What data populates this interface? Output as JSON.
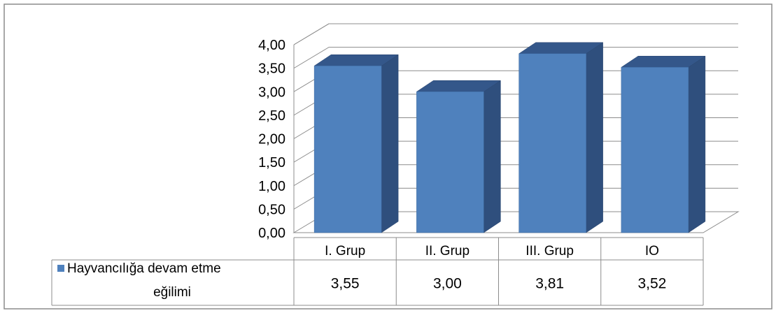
{
  "chart_data": {
    "type": "bar",
    "categories": [
      "I. Grup",
      "II. Grup",
      "III. Grup",
      "IO"
    ],
    "series": [
      {
        "name": "Hayvancılığa devam etme eğilimi",
        "name_lines": [
          "Hayvancılığa devam etme",
          "eğilimi"
        ],
        "values": [
          3.55,
          3.0,
          3.81,
          3.52
        ],
        "value_labels": [
          "3,55",
          "3,00",
          "3,81",
          "3,52"
        ],
        "color": "#4F81BD"
      }
    ],
    "y_ticks": [
      "0,00",
      "0,50",
      "1,00",
      "1,50",
      "2,00",
      "2,50",
      "3,00",
      "3,50",
      "4,00"
    ],
    "ylim": [
      0,
      4
    ],
    "grid": true,
    "style": "3d-columns-with-data-table"
  }
}
